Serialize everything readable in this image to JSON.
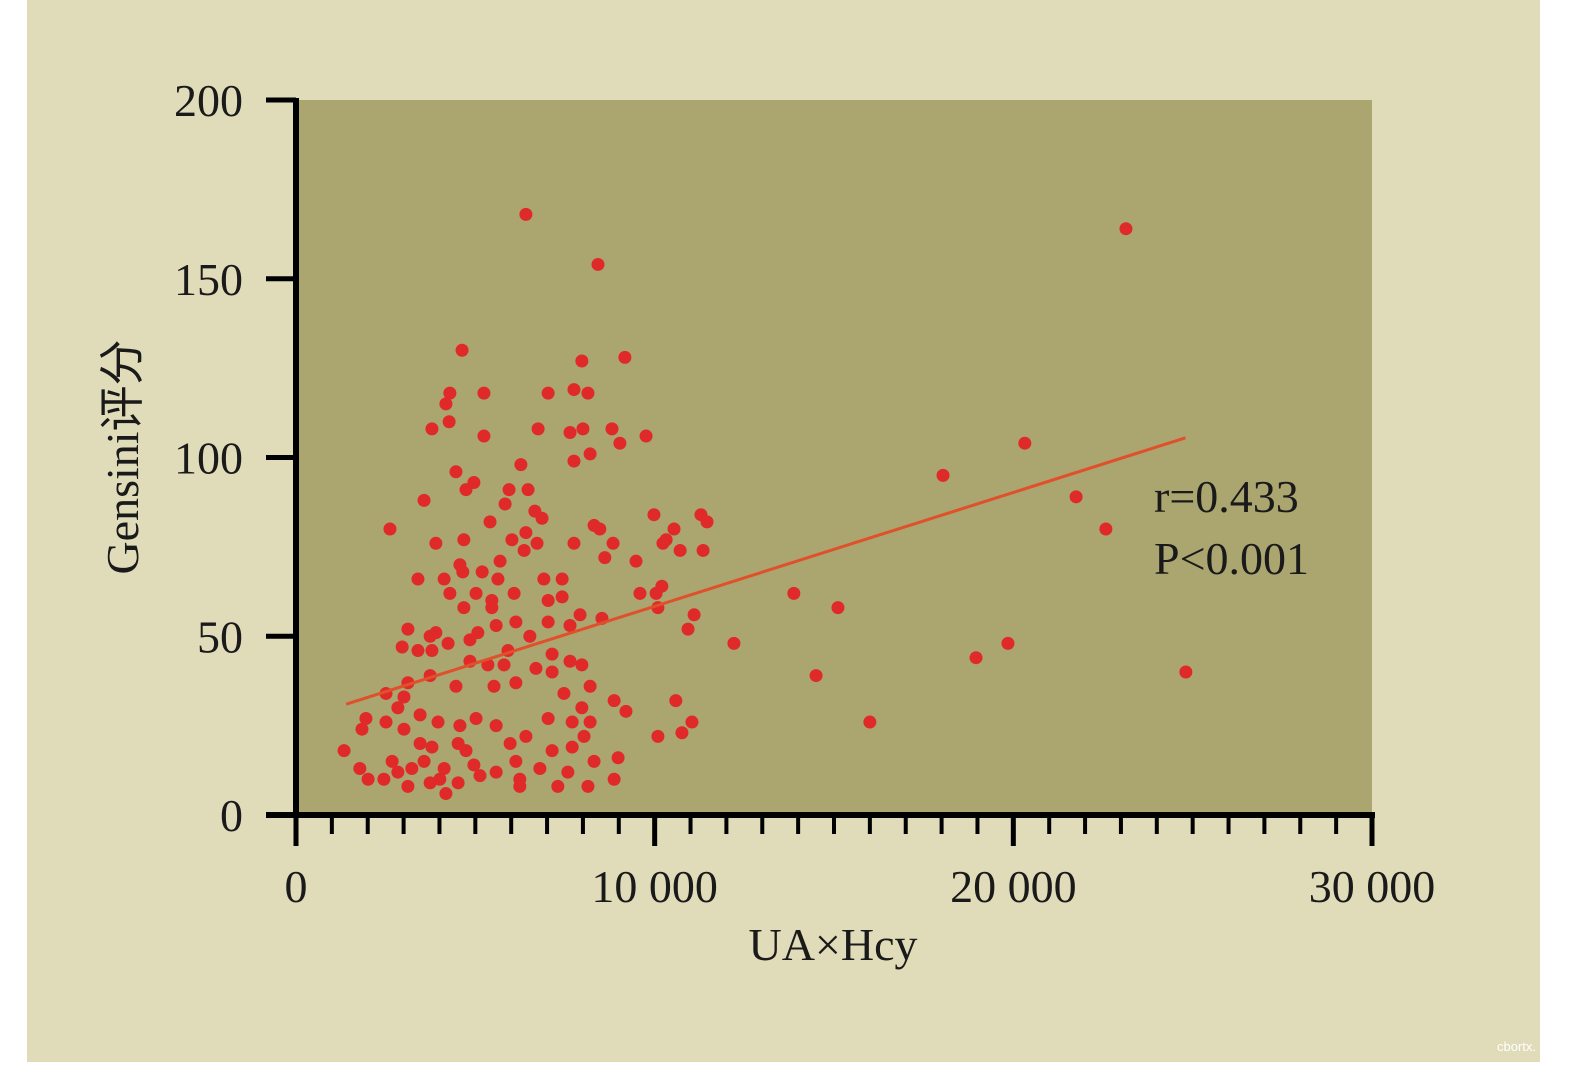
{
  "chart_data": {
    "type": "scatter",
    "xlabel": "UA×Hcy",
    "ylabel": "Gensini评分",
    "xlim": [
      0,
      30000
    ],
    "ylim": [
      0,
      200
    ],
    "xticks": [
      0,
      {
        "value": 10000,
        "label": "10 000"
      },
      {
        "value": 20000,
        "label": "20 000"
      },
      {
        "value": 30000,
        "label": "30 000"
      }
    ],
    "xminorticks": [
      1000,
      2000,
      3000,
      4000,
      5000,
      6000,
      7000,
      8000,
      9000,
      11000,
      12000,
      13000,
      14000,
      15000,
      16000,
      17000,
      18000,
      19000,
      21000,
      22000,
      23000,
      24000,
      25000,
      26000,
      27000,
      28000,
      29000
    ],
    "yticks": [
      0,
      50,
      100,
      150,
      200
    ],
    "annotations": [
      "r=0.433",
      "P<0.001"
    ],
    "watermark": "cbortx.",
    "trend_line": {
      "color": "#e0502a",
      "x": [
        1400,
        24800
      ],
      "y": [
        31,
        105.5
      ]
    },
    "series": [
      {
        "color": "#e02a2a",
        "x": [
          1340,
          6410,
          23140,
          8420,
          4630,
          9170,
          7970,
          5240,
          4290,
          7030,
          7750,
          8140,
          4180,
          4270,
          3790,
          6750,
          7640,
          8000,
          8810,
          5240,
          9760,
          9030,
          20320,
          8200,
          7750,
          6270,
          4460,
          18040,
          4960,
          4740,
          6470,
          5940,
          3570,
          5830,
          21750,
          6660,
          6860,
          5410,
          9980,
          11290,
          11460,
          2620,
          8310,
          8470,
          22580,
          6410,
          10540,
          10320,
          3900,
          4680,
          6020,
          6720,
          7750,
          8840,
          10230,
          6360,
          10710,
          11350,
          8610,
          9480,
          4570,
          5690,
          5190,
          4650,
          3400,
          4130,
          5630,
          6910,
          7420,
          10200,
          4290,
          5020,
          6080,
          9590,
          10040,
          13880,
          5460,
          7030,
          7420,
          4680,
          5460,
          10090,
          15110,
          11100,
          8530,
          7920,
          7030,
          6130,
          5580,
          7640,
          3120,
          3900,
          10930,
          5070,
          6520,
          3740,
          4850,
          2960,
          4240,
          12210,
          19850,
          3400,
          3790,
          5910,
          7140,
          18960,
          7640,
          7970,
          5350,
          5800,
          4850,
          6690,
          24810,
          14500,
          3740,
          7140,
          6130,
          4460,
          5520,
          8200,
          3120,
          2510,
          7470,
          3010,
          8870,
          10590,
          7970,
          2840,
          9200,
          3460,
          1950,
          5020,
          7030,
          7700,
          2510,
          11040,
          16000,
          3960,
          4570,
          5580,
          8200,
          1840,
          3010,
          10760,
          10090,
          6410,
          8030,
          3460,
          4520,
          5970,
          7700,
          3790,
          7140,
          4740,
          8980,
          2680,
          6130,
          8310,
          3570,
          4960,
          1780,
          4130,
          5580,
          6800,
          7580,
          2010,
          2450,
          4010,
          6240,
          8870,
          4520,
          3120,
          6240,
          7300,
          8140,
          4180,
          3740,
          5130,
          3230,
          2840
        ],
        "values": [
          18,
          168,
          164,
          154,
          130,
          128,
          127,
          118,
          118,
          118,
          119,
          118,
          115,
          110,
          108,
          108,
          107,
          108,
          108,
          106,
          106,
          104,
          104,
          101,
          99,
          98,
          96,
          95,
          93,
          91,
          91,
          91,
          88,
          87,
          89,
          85,
          83,
          82,
          84,
          84,
          82,
          80,
          81,
          80,
          80,
          79,
          80,
          77,
          76,
          77,
          77,
          76,
          76,
          76,
          76,
          74,
          74,
          74,
          72,
          71,
          70,
          71,
          68,
          68,
          66,
          66,
          66,
          66,
          66,
          64,
          62,
          62,
          62,
          62,
          62,
          62,
          60,
          60,
          61,
          58,
          58,
          58,
          58,
          56,
          55,
          56,
          54,
          54,
          53,
          53,
          52,
          51,
          52,
          51,
          50,
          50,
          49,
          47,
          48,
          48,
          48,
          46,
          46,
          46,
          45,
          44,
          43,
          42,
          42,
          42,
          43,
          41,
          40,
          39,
          39,
          40,
          37,
          36,
          36,
          36,
          37,
          34,
          34,
          33,
          32,
          32,
          30,
          30,
          29,
          28,
          27,
          27,
          27,
          26,
          26,
          26,
          26,
          26,
          25,
          25,
          26,
          24,
          24,
          23,
          22,
          22,
          22,
          20,
          20,
          20,
          19,
          19,
          18,
          18,
          16,
          15,
          15,
          15,
          15,
          14,
          13,
          13,
          12,
          13,
          12,
          10,
          10,
          10,
          10,
          10,
          9,
          8,
          8,
          8,
          8,
          6,
          9,
          11,
          13,
          12
        ]
      }
    ]
  }
}
